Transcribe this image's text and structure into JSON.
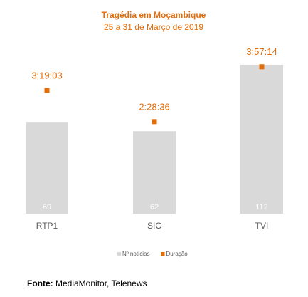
{
  "chart_data": {
    "type": "bar",
    "title": "Tragédia em Moçambique",
    "subtitle": "25 a 31 de Março de 2019",
    "categories": [
      "RTP1",
      "SIC",
      "TVI"
    ],
    "series": [
      {
        "name": "Nº notícias",
        "color": "#d9d9d9",
        "values": [
          69,
          62,
          112
        ]
      },
      {
        "name": "Duração",
        "color": "#e36c09",
        "type": "scatter",
        "axis": "y2",
        "values": [
          11943,
          8916,
          14234
        ],
        "value_labels": [
          "3:19:03",
          "2:28:36",
          "3:57:14"
        ]
      }
    ],
    "ylim": [
      0,
      120
    ],
    "y2lim": [
      0,
      15460
    ],
    "legend": "bottom"
  },
  "source": {
    "label": "Fonte:",
    "text": "MediaMonitor, Telenews"
  }
}
